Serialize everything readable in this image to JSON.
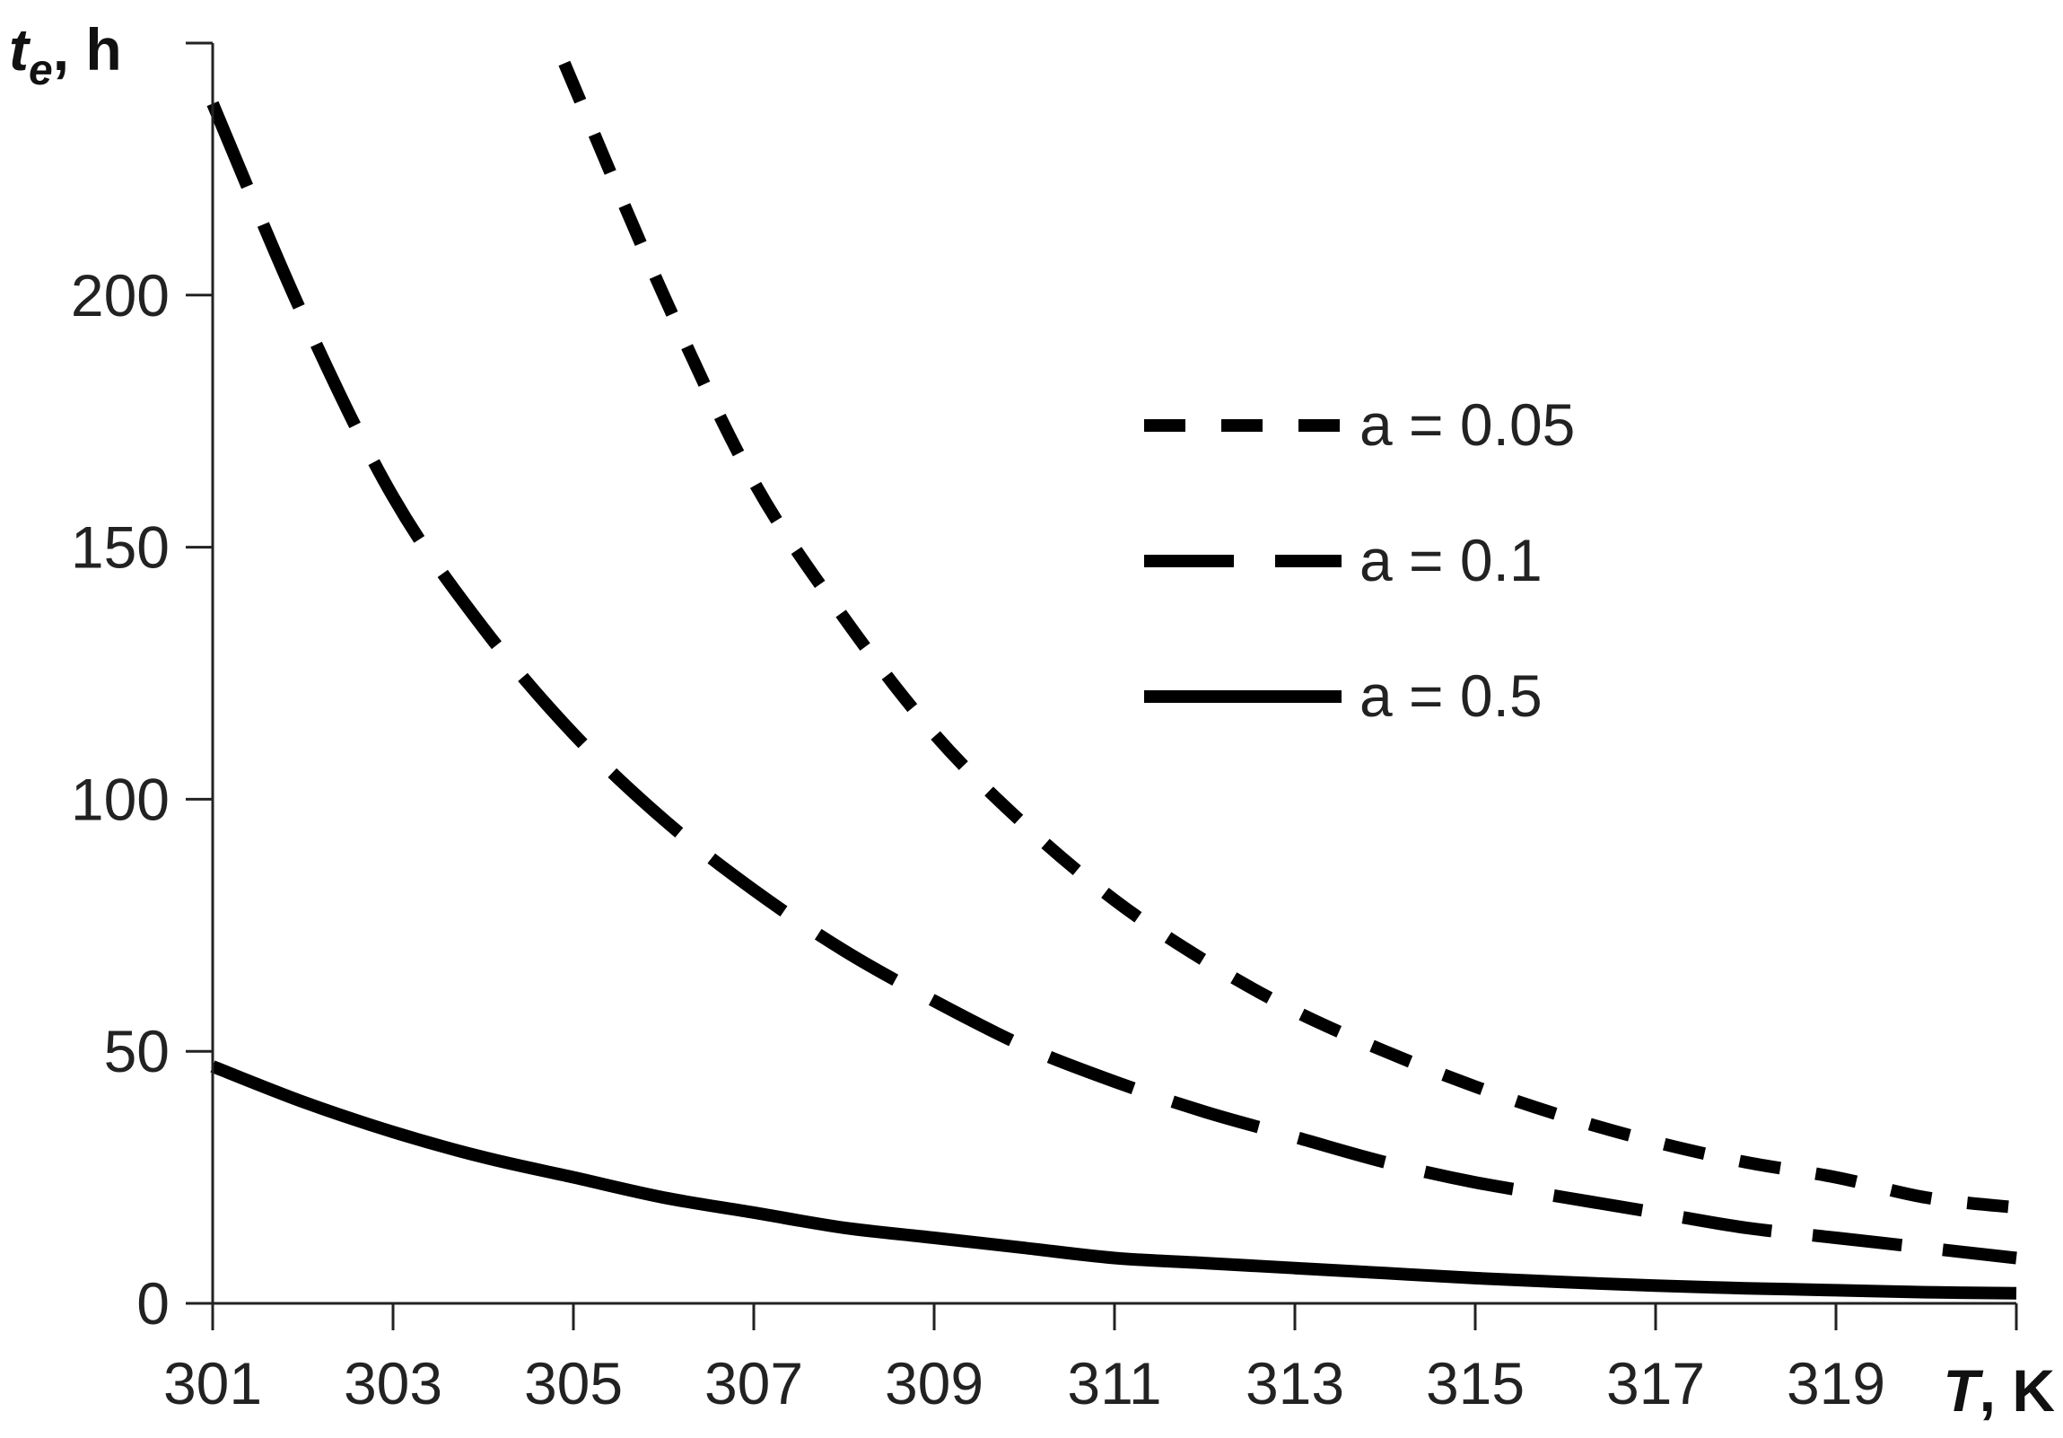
{
  "chart_data": {
    "type": "line",
    "title": "",
    "xlabel": {
      "symbol": "T",
      "unit": ", K"
    },
    "ylabel": {
      "symbol": "t",
      "subscript": "e",
      "unit": ", h"
    },
    "xlim": [
      301,
      321
    ],
    "ylim": [
      0,
      250
    ],
    "xticks": [
      301,
      303,
      305,
      307,
      309,
      311,
      313,
      315,
      317,
      319
    ],
    "yticks": [
      0,
      50,
      100,
      150,
      200
    ],
    "grid": false,
    "legend_position": "right",
    "series": [
      {
        "name": "a = 0.05",
        "dash": "short",
        "color": "#000000",
        "x": [
          304.9,
          306,
          307,
          308,
          309,
          310,
          311,
          312,
          313,
          314,
          315,
          316,
          317,
          318,
          319,
          320,
          321
        ],
        "y": [
          246,
          200,
          163,
          136,
          113,
          95,
          80,
          68,
          58,
          50,
          43,
          37,
          32,
          28,
          25,
          21,
          19
        ]
      },
      {
        "name": "a = 0.1",
        "dash": "long",
        "color": "#000000",
        "x": [
          301,
          302,
          303,
          304,
          305,
          306,
          307,
          308,
          309,
          310,
          311,
          312,
          313,
          314,
          315,
          316,
          317,
          318,
          319,
          320,
          321
        ],
        "y": [
          238,
          196,
          160,
          134,
          113,
          96,
          82,
          70,
          60,
          51,
          44,
          38,
          33,
          28,
          24,
          21,
          18,
          15,
          13,
          11,
          9
        ]
      },
      {
        "name": "a = 0.5",
        "dash": "solid",
        "color": "#000000",
        "x": [
          301,
          302,
          303,
          304,
          305,
          306,
          307,
          308,
          309,
          310,
          311,
          312,
          313,
          314,
          315,
          316,
          317,
          318,
          319,
          320,
          321
        ],
        "y": [
          47,
          40,
          34,
          29,
          25,
          21,
          18,
          15,
          13,
          11,
          9,
          8,
          7,
          6,
          5,
          4.2,
          3.5,
          3,
          2.6,
          2.2,
          2
        ]
      }
    ]
  }
}
